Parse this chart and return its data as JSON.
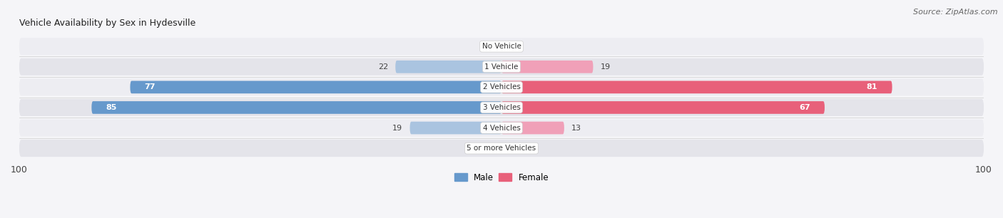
{
  "title": "Vehicle Availability by Sex in Hydesville",
  "source": "Source: ZipAtlas.com",
  "categories": [
    "No Vehicle",
    "1 Vehicle",
    "2 Vehicles",
    "3 Vehicles",
    "4 Vehicles",
    "5 or more Vehicles"
  ],
  "male_values": [
    0,
    22,
    77,
    85,
    19,
    0
  ],
  "female_values": [
    0,
    19,
    81,
    67,
    13,
    0
  ],
  "male_color_dark": "#6699cc",
  "male_color_light": "#aac4e0",
  "female_color_dark": "#e8607a",
  "female_color_light": "#f0a0b8",
  "row_bg_odd": "#ededf2",
  "row_bg_even": "#e4e4ea",
  "fig_bg": "#f5f5f8",
  "max_val": 100,
  "title_fontsize": 9,
  "source_fontsize": 8,
  "label_fontsize": 8,
  "tick_fontsize": 9,
  "category_fontsize": 7.5,
  "bar_height": 0.62,
  "large_threshold": 30
}
